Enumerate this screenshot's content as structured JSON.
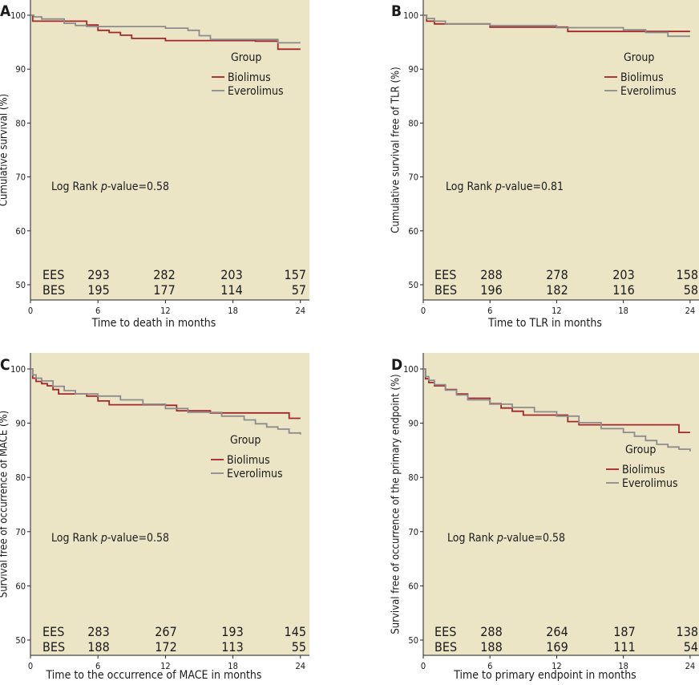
{
  "colors": {
    "background": "#ebe5c6",
    "biolimus": "#a3262a",
    "everolimus": "#8c8c8c",
    "axis": "#222222"
  },
  "chart_data": [
    {
      "panel": "A",
      "type": "line",
      "ylabel": "Cumulative survival (%)",
      "xlabel": "Time to death in months",
      "xlim": [
        0,
        24.8
      ],
      "ylim": [
        48,
        101.5
      ],
      "xticks": [
        0,
        6,
        12,
        18,
        24
      ],
      "yticks": [
        50,
        60,
        70,
        80,
        90,
        100
      ],
      "legend_title": "Group",
      "legend_position": "upper-right",
      "annotation_prefix": "Log Rank ",
      "annotation_italic": "p",
      "annotation_suffix": "-value=0.58",
      "risk_table": [
        {
          "label": "EES",
          "values": [
            "293",
            "282",
            "203",
            "157"
          ]
        },
        {
          "label": "BES",
          "values": [
            "195",
            "177",
            "114",
            "57"
          ]
        }
      ],
      "series": [
        {
          "name": "Biolimus",
          "color": "#a3262a",
          "x": [
            0,
            0.2,
            5,
            6,
            7,
            8,
            9,
            12,
            13,
            20,
            22,
            24
          ],
          "y": [
            100,
            98.9,
            98.2,
            97.2,
            96.8,
            96.3,
            95.7,
            95.3,
            95.3,
            95.2,
            93.7,
            93.7
          ]
        },
        {
          "name": "Everolimus",
          "color": "#8c8c8c",
          "x": [
            0,
            0.3,
            1,
            3,
            4,
            5,
            12,
            14,
            15,
            16,
            22,
            24
          ],
          "y": [
            100,
            99.7,
            99.3,
            98.5,
            98.1,
            97.9,
            97.6,
            97.2,
            96.2,
            95.5,
            94.9,
            94.9
          ]
        }
      ]
    },
    {
      "panel": "B",
      "type": "line",
      "ylabel": "Cumulative survival free of TLR (%)",
      "xlabel": "Time to TLR in months",
      "xlim": [
        0,
        24.8
      ],
      "ylim": [
        48,
        101.5
      ],
      "xticks": [
        0,
        6,
        12,
        18,
        24
      ],
      "yticks": [
        50,
        60,
        70,
        80,
        90,
        100
      ],
      "legend_title": "Group",
      "legend_position": "upper-right",
      "annotation_prefix": "Log Rank ",
      "annotation_italic": "p",
      "annotation_suffix": "-value=0.81",
      "risk_table": [
        {
          "label": "EES",
          "values": [
            "288",
            "278",
            "203",
            "158"
          ]
        },
        {
          "label": "BES",
          "values": [
            "196",
            "182",
            "116",
            "58"
          ]
        }
      ],
      "series": [
        {
          "name": "Biolimus",
          "color": "#a3262a",
          "x": [
            0,
            0.3,
            1,
            6,
            13,
            24
          ],
          "y": [
            100,
            98.9,
            98.4,
            97.8,
            97.0,
            97.0
          ]
        },
        {
          "name": "Everolimus",
          "color": "#8c8c8c",
          "x": [
            0,
            0.3,
            1,
            2,
            6,
            12,
            18,
            20,
            22,
            24
          ],
          "y": [
            100,
            99.4,
            98.9,
            98.4,
            98.1,
            97.7,
            97.3,
            96.8,
            96.1,
            96.1
          ]
        }
      ]
    },
    {
      "panel": "C",
      "type": "line",
      "ylabel": "Survival free of occurrence of MACE (%)",
      "xlabel": "Time to the occurrence of MACE in months",
      "xlim": [
        0,
        24.8
      ],
      "ylim": [
        48,
        101.5
      ],
      "xticks": [
        0,
        6,
        12,
        18,
        24
      ],
      "yticks": [
        50,
        60,
        70,
        80,
        90,
        100
      ],
      "legend_title": "Group",
      "legend_position": "center-right",
      "annotation_prefix": "Log Rank ",
      "annotation_italic": "p",
      "annotation_suffix": "-value=0.58",
      "risk_table": [
        {
          "label": "EES",
          "values": [
            "283",
            "267",
            "193",
            "145"
          ]
        },
        {
          "label": "BES",
          "values": [
            "188",
            "172",
            "113",
            "55"
          ]
        }
      ],
      "series": [
        {
          "name": "Biolimus",
          "color": "#a3262a",
          "x": [
            0,
            0.2,
            0.5,
            1,
            1.5,
            2,
            2.5,
            5,
            6,
            7,
            12,
            13,
            16,
            23,
            24
          ],
          "y": [
            100,
            98.3,
            97.7,
            97.3,
            96.9,
            96.2,
            95.4,
            95.0,
            94.1,
            93.4,
            93.3,
            92.3,
            91.9,
            90.9,
            90.9
          ]
        },
        {
          "name": "Everolimus",
          "color": "#8c8c8c",
          "x": [
            0,
            0.2,
            0.5,
            1,
            2,
            3,
            4,
            6,
            8,
            10,
            12,
            14,
            17,
            19,
            20,
            21,
            22,
            23,
            24
          ],
          "y": [
            100,
            98.9,
            98.3,
            97.8,
            96.8,
            96.0,
            95.4,
            95.0,
            94.3,
            93.5,
            92.7,
            92.0,
            91.3,
            90.6,
            89.9,
            89.3,
            88.9,
            88.2,
            87.9
          ]
        }
      ]
    },
    {
      "panel": "D",
      "type": "line",
      "ylabel": "Survival free of occurrence of the primary endpoint (%)",
      "xlabel": "Time to primary endpoint in months",
      "xlim": [
        0,
        24.8
      ],
      "ylim": [
        48,
        101.5
      ],
      "xticks": [
        0,
        6,
        12,
        18,
        24
      ],
      "yticks": [
        50,
        60,
        70,
        80,
        90,
        100
      ],
      "legend_title": "Group",
      "legend_position": "center-right",
      "annotation_prefix": "Log Rank ",
      "annotation_italic": "p",
      "annotation_suffix": "-value=0.58",
      "risk_table": [
        {
          "label": "EES",
          "values": [
            "288",
            "264",
            "187",
            "138"
          ]
        },
        {
          "label": "BES",
          "values": [
            "188",
            "169",
            "111",
            "54"
          ]
        }
      ],
      "series": [
        {
          "name": "Biolimus",
          "color": "#a3262a",
          "x": [
            0,
            0.2,
            0.5,
            1,
            2,
            3,
            4,
            6,
            7,
            8,
            9,
            13,
            14,
            23,
            24
          ],
          "y": [
            100,
            98.2,
            97.5,
            96.9,
            96.2,
            95.4,
            94.6,
            93.6,
            92.8,
            92.2,
            91.5,
            90.3,
            89.7,
            88.3,
            88.3
          ]
        },
        {
          "name": "Everolimus",
          "color": "#8c8c8c",
          "x": [
            0,
            0.2,
            0.5,
            1,
            2,
            3,
            4,
            6,
            8,
            10,
            12,
            14,
            16,
            18,
            19,
            20,
            21,
            22,
            23,
            24
          ],
          "y": [
            100,
            98.6,
            97.9,
            97.1,
            96.1,
            95.2,
            94.3,
            93.5,
            92.9,
            92.1,
            91.3,
            90.1,
            89.0,
            88.3,
            87.6,
            86.8,
            86.1,
            85.6,
            85.2,
            84.8
          ]
        }
      ]
    }
  ]
}
